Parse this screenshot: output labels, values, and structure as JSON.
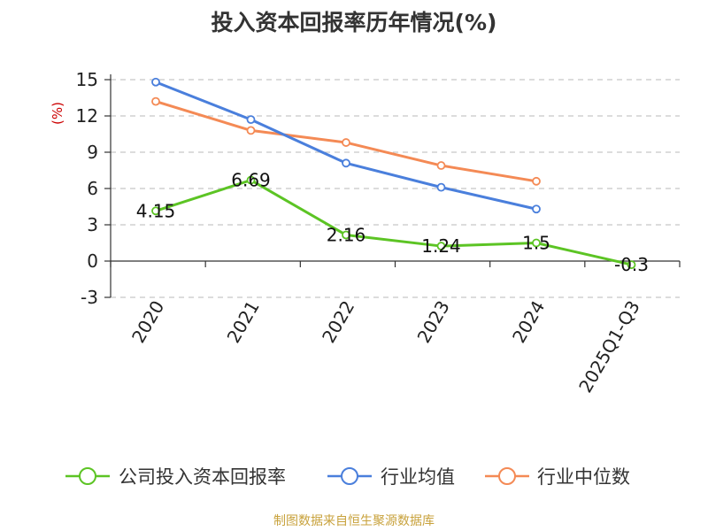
{
  "page": {
    "title": "投入资本回报率历年情况(%)",
    "footer": "制图数据来自恒生聚源数据库"
  },
  "chart_data": {
    "type": "line",
    "title": "投入资本回报率历年情况(%)",
    "ylabel": "(%)",
    "xlabel": "",
    "categories": [
      "2020",
      "2021",
      "2022",
      "2023",
      "2024",
      "2025Q1-Q3"
    ],
    "ylim": [
      -3,
      15
    ],
    "yticks": [
      -3,
      0,
      3,
      6,
      9,
      12,
      15
    ],
    "grid": true,
    "legend_position": "bottom",
    "series": [
      {
        "name": "公司投入资本回报率",
        "color": "#5cc424",
        "values": [
          4.15,
          6.69,
          2.16,
          1.24,
          1.5,
          -0.3
        ],
        "labels": [
          "4.15",
          "6.69",
          "2.16",
          "1.24",
          "1.5",
          "-0.3"
        ]
      },
      {
        "name": "行业均值",
        "color": "#4a7fdc",
        "values": [
          14.8,
          11.7,
          8.1,
          6.1,
          4.3,
          null
        ]
      },
      {
        "name": "行业中位数",
        "color": "#f48a55",
        "values": [
          13.2,
          10.8,
          9.8,
          7.9,
          6.6,
          null
        ]
      }
    ]
  }
}
